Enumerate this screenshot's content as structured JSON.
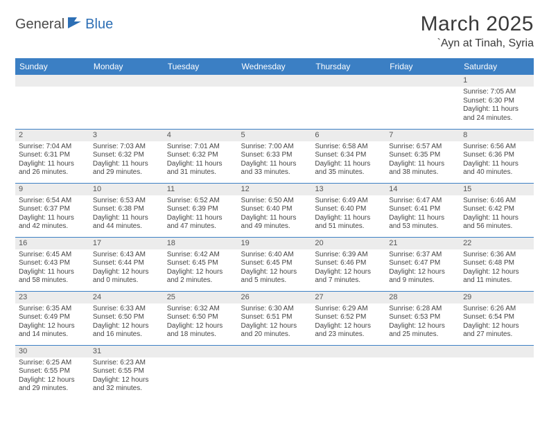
{
  "brand": {
    "part1": "General",
    "part2": "Blue"
  },
  "title": "March 2025",
  "location": "`Ayn at Tinah, Syria",
  "colors": {
    "header_bg": "#3b7fc4",
    "header_fg": "#ffffff",
    "daynum_bg": "#ececec",
    "cell_border": "#3b7fc4",
    "text": "#333333",
    "logo_gray": "#4a4a4a",
    "logo_blue": "#2d6fb5"
  },
  "weekdays": [
    "Sunday",
    "Monday",
    "Tuesday",
    "Wednesday",
    "Thursday",
    "Friday",
    "Saturday"
  ],
  "weeks": [
    [
      null,
      null,
      null,
      null,
      null,
      null,
      {
        "n": "1",
        "sr": "Sunrise: 7:05 AM",
        "ss": "Sunset: 6:30 PM",
        "dl": "Daylight: 11 hours and 24 minutes."
      }
    ],
    [
      {
        "n": "2",
        "sr": "Sunrise: 7:04 AM",
        "ss": "Sunset: 6:31 PM",
        "dl": "Daylight: 11 hours and 26 minutes."
      },
      {
        "n": "3",
        "sr": "Sunrise: 7:03 AM",
        "ss": "Sunset: 6:32 PM",
        "dl": "Daylight: 11 hours and 29 minutes."
      },
      {
        "n": "4",
        "sr": "Sunrise: 7:01 AM",
        "ss": "Sunset: 6:32 PM",
        "dl": "Daylight: 11 hours and 31 minutes."
      },
      {
        "n": "5",
        "sr": "Sunrise: 7:00 AM",
        "ss": "Sunset: 6:33 PM",
        "dl": "Daylight: 11 hours and 33 minutes."
      },
      {
        "n": "6",
        "sr": "Sunrise: 6:58 AM",
        "ss": "Sunset: 6:34 PM",
        "dl": "Daylight: 11 hours and 35 minutes."
      },
      {
        "n": "7",
        "sr": "Sunrise: 6:57 AM",
        "ss": "Sunset: 6:35 PM",
        "dl": "Daylight: 11 hours and 38 minutes."
      },
      {
        "n": "8",
        "sr": "Sunrise: 6:56 AM",
        "ss": "Sunset: 6:36 PM",
        "dl": "Daylight: 11 hours and 40 minutes."
      }
    ],
    [
      {
        "n": "9",
        "sr": "Sunrise: 6:54 AM",
        "ss": "Sunset: 6:37 PM",
        "dl": "Daylight: 11 hours and 42 minutes."
      },
      {
        "n": "10",
        "sr": "Sunrise: 6:53 AM",
        "ss": "Sunset: 6:38 PM",
        "dl": "Daylight: 11 hours and 44 minutes."
      },
      {
        "n": "11",
        "sr": "Sunrise: 6:52 AM",
        "ss": "Sunset: 6:39 PM",
        "dl": "Daylight: 11 hours and 47 minutes."
      },
      {
        "n": "12",
        "sr": "Sunrise: 6:50 AM",
        "ss": "Sunset: 6:40 PM",
        "dl": "Daylight: 11 hours and 49 minutes."
      },
      {
        "n": "13",
        "sr": "Sunrise: 6:49 AM",
        "ss": "Sunset: 6:40 PM",
        "dl": "Daylight: 11 hours and 51 minutes."
      },
      {
        "n": "14",
        "sr": "Sunrise: 6:47 AM",
        "ss": "Sunset: 6:41 PM",
        "dl": "Daylight: 11 hours and 53 minutes."
      },
      {
        "n": "15",
        "sr": "Sunrise: 6:46 AM",
        "ss": "Sunset: 6:42 PM",
        "dl": "Daylight: 11 hours and 56 minutes."
      }
    ],
    [
      {
        "n": "16",
        "sr": "Sunrise: 6:45 AM",
        "ss": "Sunset: 6:43 PM",
        "dl": "Daylight: 11 hours and 58 minutes."
      },
      {
        "n": "17",
        "sr": "Sunrise: 6:43 AM",
        "ss": "Sunset: 6:44 PM",
        "dl": "Daylight: 12 hours and 0 minutes."
      },
      {
        "n": "18",
        "sr": "Sunrise: 6:42 AM",
        "ss": "Sunset: 6:45 PM",
        "dl": "Daylight: 12 hours and 2 minutes."
      },
      {
        "n": "19",
        "sr": "Sunrise: 6:40 AM",
        "ss": "Sunset: 6:45 PM",
        "dl": "Daylight: 12 hours and 5 minutes."
      },
      {
        "n": "20",
        "sr": "Sunrise: 6:39 AM",
        "ss": "Sunset: 6:46 PM",
        "dl": "Daylight: 12 hours and 7 minutes."
      },
      {
        "n": "21",
        "sr": "Sunrise: 6:37 AM",
        "ss": "Sunset: 6:47 PM",
        "dl": "Daylight: 12 hours and 9 minutes."
      },
      {
        "n": "22",
        "sr": "Sunrise: 6:36 AM",
        "ss": "Sunset: 6:48 PM",
        "dl": "Daylight: 12 hours and 11 minutes."
      }
    ],
    [
      {
        "n": "23",
        "sr": "Sunrise: 6:35 AM",
        "ss": "Sunset: 6:49 PM",
        "dl": "Daylight: 12 hours and 14 minutes."
      },
      {
        "n": "24",
        "sr": "Sunrise: 6:33 AM",
        "ss": "Sunset: 6:50 PM",
        "dl": "Daylight: 12 hours and 16 minutes."
      },
      {
        "n": "25",
        "sr": "Sunrise: 6:32 AM",
        "ss": "Sunset: 6:50 PM",
        "dl": "Daylight: 12 hours and 18 minutes."
      },
      {
        "n": "26",
        "sr": "Sunrise: 6:30 AM",
        "ss": "Sunset: 6:51 PM",
        "dl": "Daylight: 12 hours and 20 minutes."
      },
      {
        "n": "27",
        "sr": "Sunrise: 6:29 AM",
        "ss": "Sunset: 6:52 PM",
        "dl": "Daylight: 12 hours and 23 minutes."
      },
      {
        "n": "28",
        "sr": "Sunrise: 6:28 AM",
        "ss": "Sunset: 6:53 PM",
        "dl": "Daylight: 12 hours and 25 minutes."
      },
      {
        "n": "29",
        "sr": "Sunrise: 6:26 AM",
        "ss": "Sunset: 6:54 PM",
        "dl": "Daylight: 12 hours and 27 minutes."
      }
    ],
    [
      {
        "n": "30",
        "sr": "Sunrise: 6:25 AM",
        "ss": "Sunset: 6:55 PM",
        "dl": "Daylight: 12 hours and 29 minutes."
      },
      {
        "n": "31",
        "sr": "Sunrise: 6:23 AM",
        "ss": "Sunset: 6:55 PM",
        "dl": "Daylight: 12 hours and 32 minutes."
      },
      null,
      null,
      null,
      null,
      null
    ]
  ]
}
